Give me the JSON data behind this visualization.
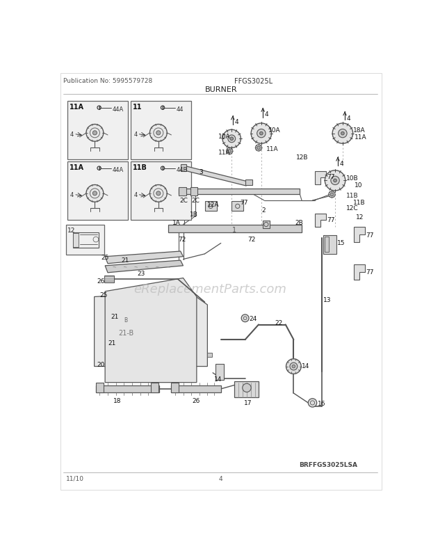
{
  "title": "BURNER",
  "model": "FFGS3025L",
  "publication": "Publication No: 5995579728",
  "date": "11/10",
  "page": "4",
  "watermark": "eReplacementParts.com",
  "diagram_ref": "BRFFGS3025LSA",
  "bg_color": "#ffffff",
  "line_color": "#444444",
  "dark_line": "#222222",
  "gray_line": "#888888",
  "light_gray": "#cccccc",
  "box_fill": "#f0f0f0",
  "text_color": "#111111",
  "pub_color": "#555555"
}
